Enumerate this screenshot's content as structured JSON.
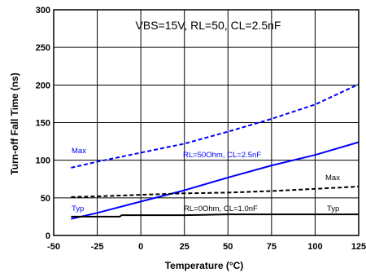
{
  "chart_data": {
    "type": "line",
    "title": "VBS=15V, RL=50, CL=2.5nF",
    "xlabel": "Temperature (°C)",
    "ylabel": "Turn-off Fall Time (ns)",
    "xlim": [
      -50,
      125
    ],
    "ylim": [
      0,
      300
    ],
    "xticks": [
      -50,
      -25,
      0,
      25,
      50,
      75,
      100,
      125
    ],
    "yticks": [
      0,
      50,
      100,
      150,
      200,
      250,
      300
    ],
    "xtick_labels": [
      "-50",
      "-25",
      "0",
      "25",
      "50",
      "75",
      "100",
      "125"
    ],
    "ytick_labels": [
      "0",
      "50",
      "100",
      "150",
      "200",
      "250",
      "300"
    ],
    "grid": true,
    "annotations": {
      "max_blue": "Max",
      "typ_blue": "Typ",
      "rl50": "RL=50Ohm, CL=2.5nF",
      "max_black": "Max",
      "rl0": "RL=0Ohm, CL=1.0nF",
      "typ_black": "Typ"
    },
    "series": [
      {
        "color": "#0000ff",
        "style": "dashed",
        "x": [
          -40,
          -25,
          0,
          25,
          50,
          75,
          100,
          125
        ],
        "y": [
          90,
          98,
          110,
          122,
          138,
          155,
          174,
          201
        ]
      },
      {
        "color": "#0000ff",
        "style": "solid",
        "x": [
          -40,
          -25,
          0,
          25,
          50,
          75,
          100,
          125
        ],
        "y": [
          22,
          30,
          45,
          60,
          77,
          93,
          107,
          124
        ]
      },
      {
        "color": "#000000",
        "style": "dashed",
        "x": [
          -40,
          -25,
          0,
          25,
          50,
          75,
          100,
          125
        ],
        "y": [
          51,
          52,
          54,
          56,
          57,
          59,
          62,
          65
        ]
      },
      {
        "color": "#000000",
        "style": "solid",
        "x": [
          -40,
          -12,
          -11,
          25,
          50,
          75,
          100,
          125
        ],
        "y": [
          25,
          25,
          27,
          27,
          28,
          28,
          28,
          28
        ]
      }
    ]
  }
}
